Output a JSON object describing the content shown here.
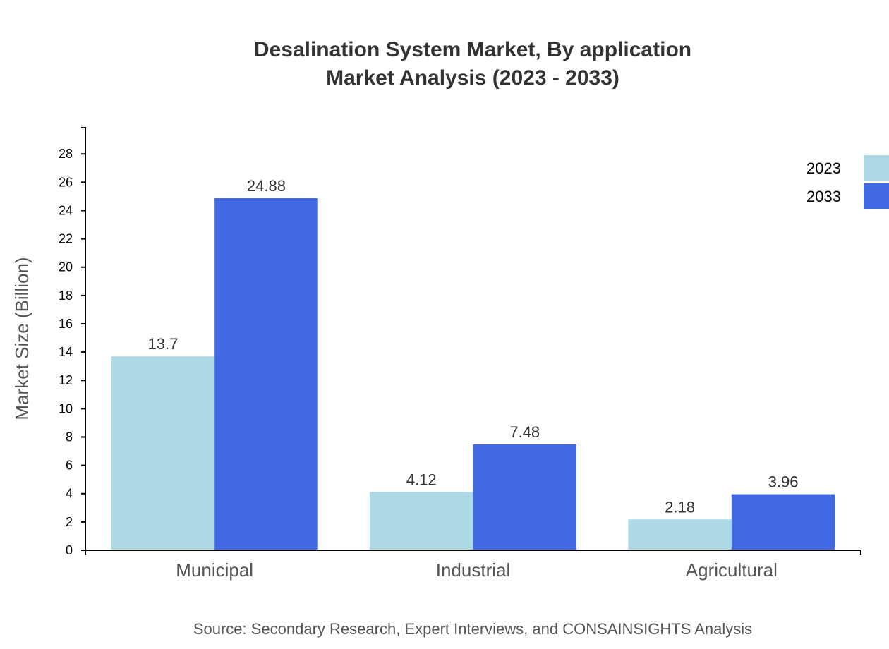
{
  "chart_data": {
    "type": "bar",
    "title": "Desalination System Market, By application",
    "subtitle": "Market Analysis (2023 - 2033)",
    "xlabel": "",
    "ylabel": "Market Size (Billion)",
    "categories": [
      "Municipal",
      "Industrial",
      "Agricultural"
    ],
    "series": [
      {
        "name": "2023",
        "color": "#ADD8E6",
        "values": [
          13.7,
          4.12,
          2.18
        ]
      },
      {
        "name": "2033",
        "color": "#4169E1",
        "values": [
          24.88,
          7.48,
          3.96
        ]
      }
    ],
    "ylim": [
      0,
      29.856
    ],
    "yticks": [
      0,
      2,
      4,
      6,
      8,
      10,
      12,
      14,
      16,
      18,
      20,
      22,
      24,
      26,
      28
    ],
    "grid": false,
    "legend": "top-right",
    "source": "Source: Secondary Research, Expert Interviews, and CONSAINSIGHTS Analysis"
  }
}
